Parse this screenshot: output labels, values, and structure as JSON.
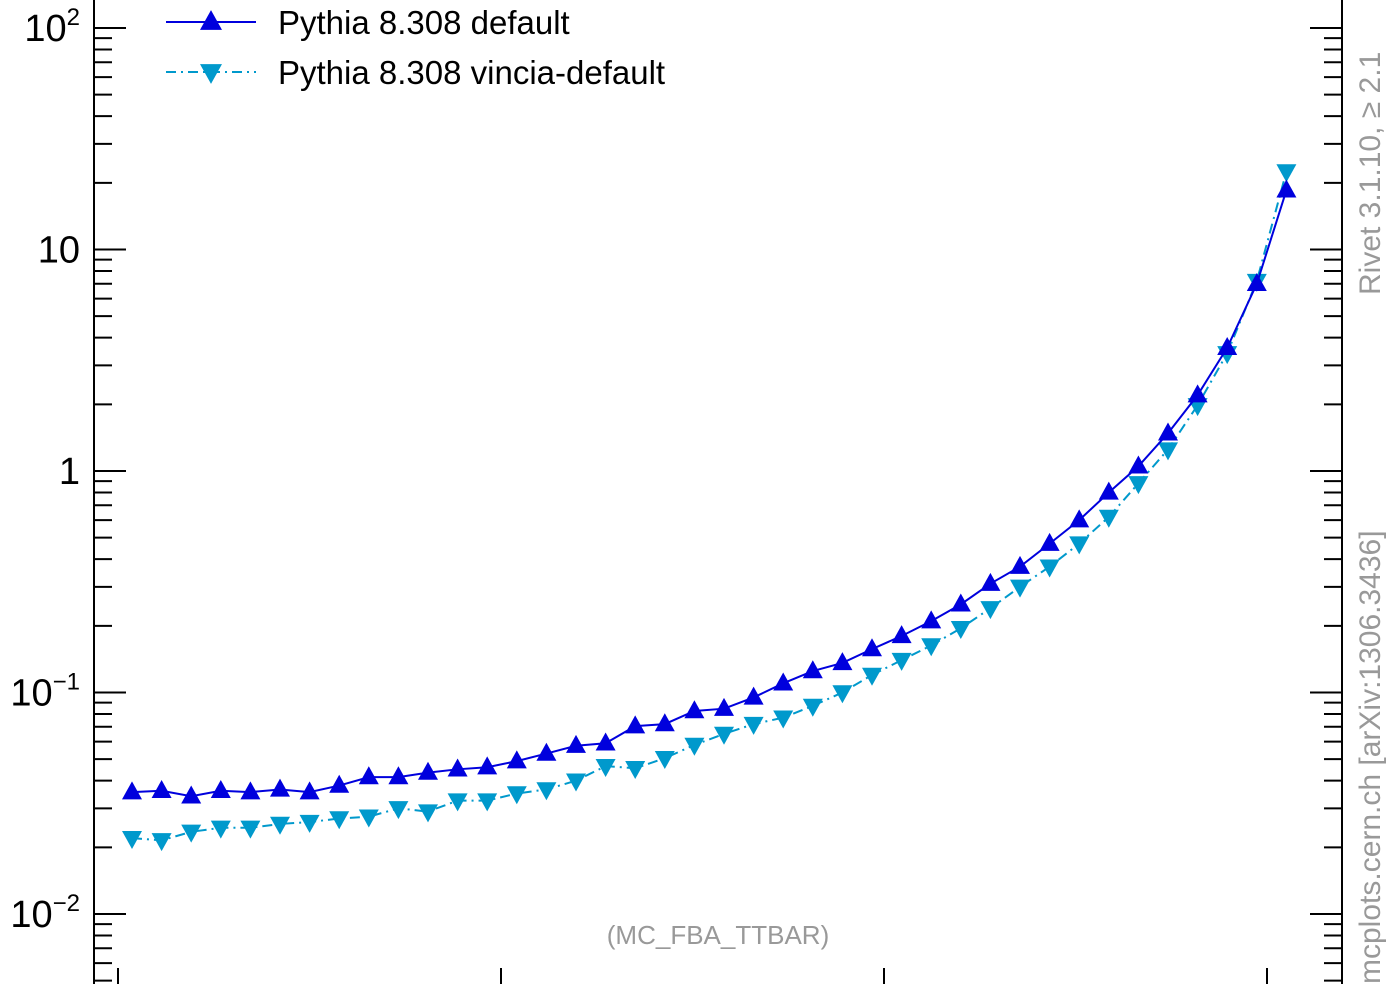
{
  "chart_data": {
    "type": "line",
    "y_scale": "log",
    "ylim": [
      0.0055,
      160
    ],
    "grid": false,
    "legend_position": "top-left",
    "y_tick_labels": [
      {
        "value": 100,
        "base": "10",
        "exp": "2"
      },
      {
        "value": 10,
        "base": "10",
        "exp": ""
      },
      {
        "value": 1,
        "base": "1",
        "exp": ""
      },
      {
        "value": 0.1,
        "base": "10",
        "exp": "−1"
      },
      {
        "value": 0.01,
        "base": "10",
        "exp": "−2"
      }
    ],
    "series": [
      {
        "name": "Pythia 8.308 default",
        "color": "#0000dd",
        "marker": "triangle-up",
        "line_style": "solid",
        "values": [
          0.0355,
          0.036,
          0.034,
          0.036,
          0.0355,
          0.0365,
          0.0355,
          0.038,
          0.0415,
          0.0415,
          0.0435,
          0.045,
          0.046,
          0.049,
          0.053,
          0.0575,
          0.059,
          0.0705,
          0.072,
          0.0825,
          0.0845,
          0.095,
          0.11,
          0.125,
          0.136,
          0.157,
          0.18,
          0.21,
          0.25,
          0.31,
          0.37,
          0.47,
          0.6,
          0.8,
          1.05,
          1.48,
          2.2,
          3.6,
          7.0,
          18.5
        ]
      },
      {
        "name": "Pythia 8.308 vincia-default",
        "color": "#0099cc",
        "marker": "triangle-down",
        "line_style": "dash-dot",
        "values": [
          0.022,
          0.0215,
          0.0235,
          0.0245,
          0.0245,
          0.0255,
          0.026,
          0.027,
          0.0275,
          0.03,
          0.029,
          0.0325,
          0.0325,
          0.035,
          0.0365,
          0.04,
          0.0465,
          0.0455,
          0.0505,
          0.058,
          0.065,
          0.072,
          0.077,
          0.087,
          0.1,
          0.12,
          0.14,
          0.163,
          0.195,
          0.24,
          0.3,
          0.37,
          0.47,
          0.62,
          0.88,
          1.25,
          1.98,
          3.4,
          7.2,
          22.5
        ]
      }
    ]
  },
  "annotation": "(MC_FBA_TTBAR)",
  "side_text_top": "Rivet 3.1.10, ≥ 2.1",
  "side_text_bottom": "mcplots.cern.ch [arXiv:1306.3436]"
}
